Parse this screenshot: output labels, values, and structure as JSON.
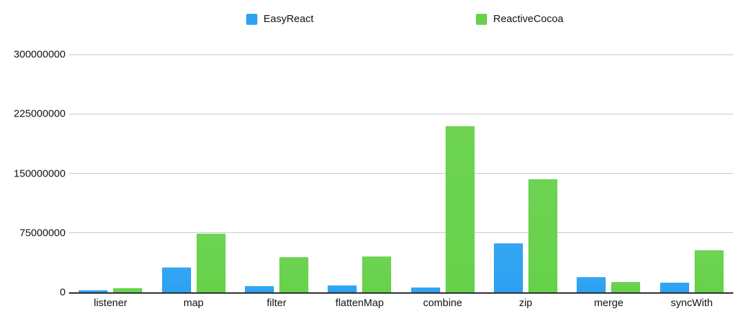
{
  "page": {
    "background": "#ffffff",
    "text_color": "#111111",
    "gridline_color": "#c9c9c9",
    "baseline_color": "#2b2b2b"
  },
  "chart_data": {
    "type": "bar",
    "title": "",
    "xlabel": "",
    "ylabel": "",
    "legend_position": "top",
    "grid": true,
    "ylim": [
      0,
      300000000
    ],
    "yticks": [
      300000000,
      225000000,
      150000000,
      75000000,
      0
    ],
    "ytick_labels": [
      "300000000",
      "225000000",
      "150000000",
      "75000000",
      "0"
    ],
    "categories": [
      "listener",
      "map",
      "filter",
      "flattenMap",
      "combine",
      "zip",
      "merge",
      "syncWith"
    ],
    "series": [
      {
        "name": "EasyReact",
        "color": "#2ba1f2",
        "values": [
          3000000,
          31000000,
          8000000,
          9000000,
          6000000,
          62000000,
          19000000,
          12000000
        ]
      },
      {
        "name": "ReactiveCocoa",
        "color": "#66d14a",
        "values": [
          5000000,
          74000000,
          44000000,
          45000000,
          210000000,
          143000000,
          13000000,
          53000000
        ]
      }
    ]
  }
}
